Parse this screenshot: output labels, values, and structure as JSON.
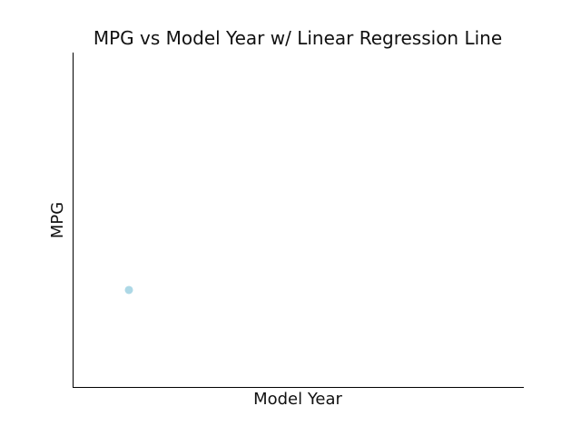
{
  "chart_data": {
    "type": "scatter",
    "title": "MPG vs Model Year w/ Linear Regression Line",
    "xlabel": "Model Year",
    "ylabel": "MPG",
    "xlim": [
      0,
      8
    ],
    "ylim": [
      0,
      6
    ],
    "grid": false,
    "series": [
      {
        "x": [
          1
        ],
        "y": [
          1.74
        ],
        "color": "#add8e6"
      }
    ]
  }
}
